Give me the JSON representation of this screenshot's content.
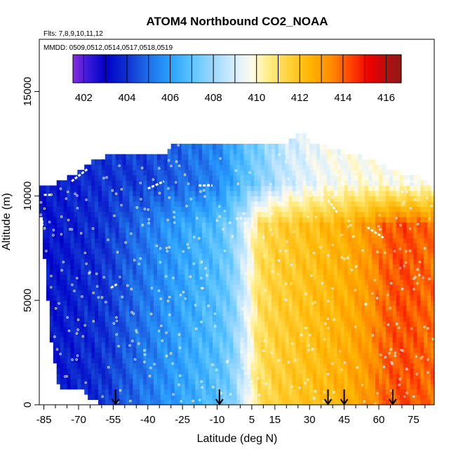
{
  "chart_data": {
    "type": "heatmap",
    "title": "ATOM4 Northbound CO2_NOAA",
    "flights_note": "Flts: 7,8,9,10,11,12",
    "dates_note": "MMDD: 0509,0512,0514,0517,0518,0519",
    "xlabel": "Latitude (deg N)",
    "ylabel": "Altitude (m)",
    "xlim": [
      -87,
      84
    ],
    "ylim": [
      0,
      17500
    ],
    "x_ticks": [
      -85,
      -70,
      -55,
      -40,
      -25,
      -10,
      5,
      15,
      30,
      45,
      60,
      75
    ],
    "x_tick_labels": [
      "-85",
      "-70",
      "-55",
      "-40",
      "-25",
      "-10",
      "5",
      "15",
      "30",
      "45",
      "60",
      "75"
    ],
    "x_minor_ticks": [
      -80,
      -75,
      -65,
      -60,
      -50,
      -45,
      -35,
      -30,
      -20,
      -15,
      -5,
      0,
      10,
      20,
      25,
      35,
      40,
      50,
      55,
      65,
      70,
      80
    ],
    "y_ticks": [
      0,
      5000,
      10000,
      15000
    ],
    "y_tick_labels": [
      "0",
      "5000",
      "10000",
      "15000"
    ],
    "colorbar": {
      "min": 401.5,
      "max": 416.7,
      "ticks": [
        402,
        404,
        406,
        408,
        410,
        412,
        414,
        416
      ],
      "tick_labels": [
        "402",
        "404",
        "406",
        "408",
        "410",
        "412",
        "414",
        "416"
      ],
      "colors": [
        {
          "v": 401.5,
          "c": "#8a2be2"
        },
        {
          "v": 402.2,
          "c": "#3a1ad8"
        },
        {
          "v": 403.0,
          "c": "#0000c8"
        },
        {
          "v": 404.0,
          "c": "#1030d0"
        },
        {
          "v": 405.0,
          "c": "#1f6fe8"
        },
        {
          "v": 406.0,
          "c": "#2aa0ff"
        },
        {
          "v": 407.0,
          "c": "#5cc4ff"
        },
        {
          "v": 408.0,
          "c": "#9cd8ff"
        },
        {
          "v": 409.0,
          "c": "#d8eeff"
        },
        {
          "v": 409.8,
          "c": "#fffbe8"
        },
        {
          "v": 410.5,
          "c": "#ffee8a"
        },
        {
          "v": 411.5,
          "c": "#ffd23a"
        },
        {
          "v": 412.5,
          "c": "#ffb400"
        },
        {
          "v": 413.5,
          "c": "#ff8a00"
        },
        {
          "v": 414.3,
          "c": "#ff4800"
        },
        {
          "v": 415.2,
          "c": "#ee0000"
        },
        {
          "v": 416.7,
          "c": "#8b1a1a"
        }
      ]
    },
    "arrows_lat": [
      -54,
      -9,
      38,
      45,
      66
    ],
    "field": {
      "lat_profile": [
        {
          "lat": -87,
          "v": 403.3
        },
        {
          "lat": -60,
          "v": 404.0
        },
        {
          "lat": -45,
          "v": 405.0
        },
        {
          "lat": -33,
          "v": 405.7
        },
        {
          "lat": -22,
          "v": 406.3
        },
        {
          "lat": -10,
          "v": 406.9
        },
        {
          "lat": -4,
          "v": 407.6
        },
        {
          "lat": 2,
          "v": 409.2
        },
        {
          "lat": 7,
          "v": 411.0
        },
        {
          "lat": 15,
          "v": 411.6
        },
        {
          "lat": 30,
          "v": 412.1
        },
        {
          "lat": 45,
          "v": 412.6
        },
        {
          "lat": 55,
          "v": 413.2
        },
        {
          "lat": 62,
          "v": 414.0
        },
        {
          "lat": 70,
          "v": 414.3
        },
        {
          "lat": 84,
          "v": 413.8
        }
      ],
      "upper_profile": [
        {
          "lat": -87,
          "v": 403.5
        },
        {
          "lat": -40,
          "v": 404.3
        },
        {
          "lat": -10,
          "v": 405.5
        },
        {
          "lat": 0,
          "v": 406.8
        },
        {
          "lat": 10,
          "v": 407.8
        },
        {
          "lat": 20,
          "v": 408.8
        },
        {
          "lat": 35,
          "v": 409.5
        },
        {
          "lat": 50,
          "v": 409.8
        },
        {
          "lat": 84,
          "v": 409.6
        }
      ],
      "top_outline": [
        {
          "lat": -87,
          "alt": 10300
        },
        {
          "lat": -80,
          "alt": 10500
        },
        {
          "lat": -72,
          "alt": 11000
        },
        {
          "lat": -65,
          "alt": 11500
        },
        {
          "lat": -58,
          "alt": 11800
        },
        {
          "lat": -35,
          "alt": 11800
        },
        {
          "lat": -28,
          "alt": 12500
        },
        {
          "lat": 20,
          "alt": 12500
        },
        {
          "lat": 25,
          "alt": 13000
        },
        {
          "lat": 30,
          "alt": 12500
        },
        {
          "lat": 45,
          "alt": 12000
        },
        {
          "lat": 58,
          "alt": 11500
        },
        {
          "lat": 68,
          "alt": 11000
        },
        {
          "lat": 76,
          "alt": 10800
        },
        {
          "lat": 84,
          "alt": 10200
        }
      ],
      "bottom_outline": [
        {
          "lat": -87,
          "alt": 9000
        },
        {
          "lat": -85,
          "alt": 6500
        },
        {
          "lat": -83,
          "alt": 3500
        },
        {
          "lat": -80,
          "alt": 1300
        },
        {
          "lat": -78,
          "alt": 900
        },
        {
          "lat": -70,
          "alt": 900
        },
        {
          "lat": -68,
          "alt": 600
        },
        {
          "lat": -65,
          "alt": 400
        },
        {
          "lat": -60,
          "alt": 100
        },
        {
          "lat": 84,
          "alt": 0
        }
      ]
    }
  }
}
